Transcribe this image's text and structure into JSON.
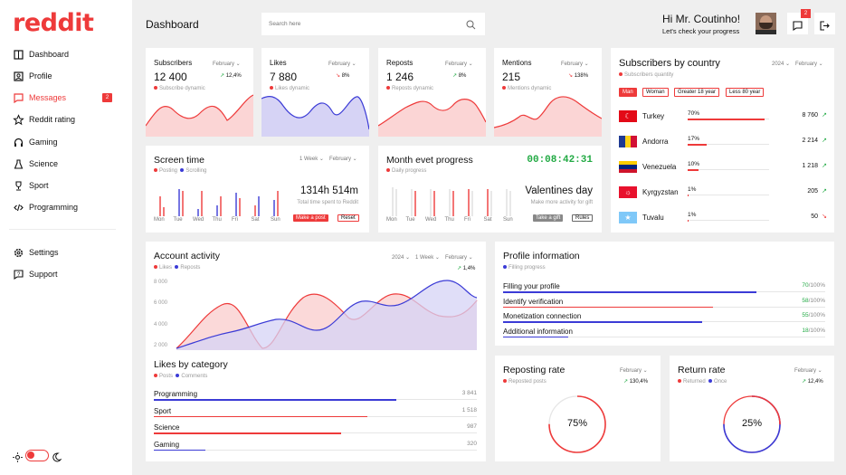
{
  "brand": {
    "logo": "reddit",
    "accent": "#ee3a3a",
    "blue": "#3b3bd6"
  },
  "sidebar": {
    "items": [
      {
        "label": "Dashboard",
        "icon": "grid-icon"
      },
      {
        "label": "Profile",
        "icon": "user-icon"
      },
      {
        "label": "Messages",
        "icon": "chat-icon",
        "badge": "2"
      },
      {
        "label": "Reddit rating",
        "icon": "star-icon"
      },
      {
        "label": "Gaming",
        "icon": "headphones-icon"
      },
      {
        "label": "Science",
        "icon": "flask-icon"
      },
      {
        "label": "Sport",
        "icon": "trophy-icon"
      },
      {
        "label": "Programming",
        "icon": "code-icon"
      }
    ],
    "bottom": [
      {
        "label": "Settings",
        "icon": "gear-icon"
      },
      {
        "label": "Support",
        "icon": "help-icon"
      }
    ]
  },
  "header": {
    "title": "Dashboard",
    "search_placeholder": "Search here",
    "greeting": "Hi Mr. Coutinho!",
    "subgreeting": "Let's check your progress",
    "notif_count": "2"
  },
  "stats": [
    {
      "title": "Subscribers",
      "month": "February",
      "value": "12 400",
      "change": "12,4%",
      "dir": "up",
      "caption": "Subscribe dynamic",
      "fill": "#fbd5d5",
      "stroke": "#ee3a3a"
    },
    {
      "title": "Likes",
      "month": "February",
      "value": "7 880",
      "change": "8%",
      "dir": "down",
      "caption": "Likes dynamic",
      "fill": "#d6d3f5",
      "stroke": "#3b3bd6"
    },
    {
      "title": "Reposts",
      "month": "February",
      "value": "1 246",
      "change": "8%",
      "dir": "up",
      "caption": "Reposts dynamic",
      "fill": "#fbd5d5",
      "stroke": "#ee3a3a"
    },
    {
      "title": "Mentions",
      "month": "February",
      "value": "215",
      "change": "138%",
      "dir": "down",
      "caption": "Mentions dynamic",
      "fill": "#fbd5d5",
      "stroke": "#ee3a3a"
    }
  ],
  "country": {
    "title": "Subscribers by country",
    "caption": "Subscribers quantity",
    "year": "2024",
    "month": "February",
    "filters": [
      "Man",
      "Woman",
      "Greater 18 year",
      "Less  80 year"
    ],
    "rows": [
      {
        "name": "Turkey",
        "pct": "70%",
        "value": "8 760",
        "dir": "up",
        "fraction": 0.7
      },
      {
        "name": "Andorra",
        "pct": "17%",
        "value": "2 214",
        "dir": "up",
        "fraction": 0.17
      },
      {
        "name": "Venezuela",
        "pct": "10%",
        "value": "1 218",
        "dir": "up",
        "fraction": 0.1
      },
      {
        "name": "Kyrgyzstan",
        "pct": "1%",
        "value": "205",
        "dir": "up",
        "fraction": 0.01
      },
      {
        "name": "Tuvalu",
        "pct": "1%",
        "value": "50",
        "dir": "down",
        "fraction": 0.01
      }
    ]
  },
  "screen_time": {
    "title": "Screen time",
    "legend": [
      "Posting",
      "Scrolling"
    ],
    "range": "1 Week",
    "month": "February",
    "value": "1314h 514m",
    "caption": "Total time spent to Reddit",
    "btn_primary": "Make a post",
    "btn_secondary": "Reset",
    "days": [
      "Mon",
      "Tue",
      "Wed",
      "Thu",
      "Fri",
      "Sat",
      "Sun"
    ]
  },
  "month_event": {
    "title": "Month evet progress",
    "timer": "00:08:42:31",
    "caption": "Daily progress",
    "event": "Valentines day",
    "event_caption": "Make more activity for gift",
    "btn_primary": "Take a gift",
    "btn_secondary": "Rules",
    "days": [
      "Mon",
      "Tue",
      "Wed",
      "Thu",
      "Fri",
      "Sat",
      "Sun"
    ]
  },
  "activity": {
    "title": "Account activity",
    "legend": [
      "Likes",
      "Reposts"
    ],
    "year": "2024",
    "range": "1 Week",
    "month": "February",
    "change": "1,4%",
    "yticks": [
      "8 000",
      "6 000",
      "4 000",
      "2 000"
    ]
  },
  "categories": {
    "title": "Likes by category",
    "legend": [
      "Posts",
      "Comments"
    ],
    "rows": [
      {
        "name": "Programming",
        "value": "3 841",
        "fraction": 0.75,
        "color": "#3b3bd6"
      },
      {
        "name": "Sport",
        "value": "1 518",
        "fraction": 0.66,
        "color": "#ee3a3a"
      },
      {
        "name": "Science",
        "value": "987",
        "fraction": 0.58,
        "color": "#ee3a3a"
      },
      {
        "name": "Gaming",
        "value": "320",
        "fraction": 0.16,
        "color": "#3b3bd6"
      }
    ]
  },
  "profile": {
    "title": "Profile information",
    "caption": "Filling progress",
    "rows": [
      {
        "name": "Filling your profile",
        "value": "70/100%",
        "fraction": 0.7,
        "color": "#3b3bd6"
      },
      {
        "name": "Identify verification",
        "value": "58/100%",
        "fraction": 0.58,
        "color": "#ee3a3a"
      },
      {
        "name": "Monetization connection",
        "value": "55/100%",
        "fraction": 0.55,
        "color": "#3b3bd6"
      },
      {
        "name": "Additional information",
        "value": "18/100%",
        "fraction": 0.18,
        "color": "#3b3bd6"
      }
    ]
  },
  "reposting": {
    "title": "Reposting rate",
    "caption": "Reposted posts",
    "month": "February",
    "change": "130,4%",
    "value": "75%",
    "fraction": 0.75
  },
  "return_rate": {
    "title": "Return rate",
    "legend": [
      "Returned",
      "Once"
    ],
    "month": "February",
    "change": "12,4%",
    "value": "25%",
    "fraction": 0.25
  }
}
